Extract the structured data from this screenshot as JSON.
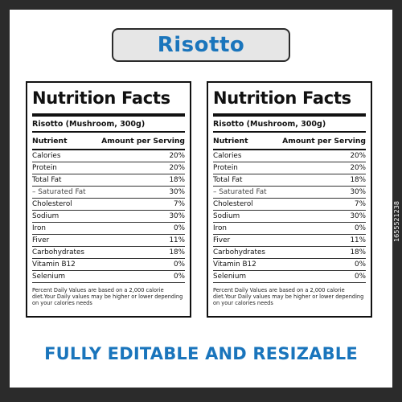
{
  "title": "Risotto",
  "panels": [
    {
      "heading": "Nutrition Facts",
      "serving": "Risotto (Mushroom, 300g)",
      "col_nutrient": "Nutrient",
      "col_amount": "Amount per Serving",
      "rows": [
        {
          "name": "Calories",
          "value": "20%"
        },
        {
          "name": "Protein",
          "value": "20%"
        },
        {
          "name": "Total Fat",
          "value": "18%"
        },
        {
          "name": "– Saturated Fat",
          "value": "30%"
        },
        {
          "name": "Cholesterol",
          "value": "7%"
        },
        {
          "name": "Sodium",
          "value": "30%"
        },
        {
          "name": "Iron",
          "value": "0%"
        },
        {
          "name": "Fiver",
          "value": "11%"
        },
        {
          "name": "Carbohydrates",
          "value": "18%"
        },
        {
          "name": "Vitamin B12",
          "value": "0%"
        },
        {
          "name": "Selenium",
          "value": "0%"
        }
      ],
      "footnote": "Percent Daily Values are based on a 2,000 calorie diet.Your Daily values may be higher or lower depending on your calories needs"
    },
    {
      "heading": "Nutrition Facts",
      "serving": "Risotto (Mushroom, 300g)",
      "col_nutrient": "Nutrient",
      "col_amount": "Amount per Serving",
      "rows": [
        {
          "name": "Calories",
          "value": "20%"
        },
        {
          "name": "Protein",
          "value": "20%"
        },
        {
          "name": "Total Fat",
          "value": "18%"
        },
        {
          "name": "– Saturated Fat",
          "value": "30%"
        },
        {
          "name": "Cholesterol",
          "value": "7%"
        },
        {
          "name": "Sodium",
          "value": "30%"
        },
        {
          "name": "Iron",
          "value": "0%"
        },
        {
          "name": "Fiver",
          "value": "11%"
        },
        {
          "name": "Carbohydrates",
          "value": "18%"
        },
        {
          "name": "Vitamin B12",
          "value": "0%"
        },
        {
          "name": "Selenium",
          "value": "0%"
        }
      ],
      "footnote": "Percent Daily Values are based on a 2,000 calorie diet.Your Daily values may be higher or lower depending on your calories needs"
    }
  ],
  "tagline": "FULLY EDITABLE AND RESIZABLE",
  "image_id": "1655521238",
  "colors": {
    "accent": "#1a75bc",
    "border": "#2b2b2b",
    "title_box": "#e6e6e6"
  }
}
